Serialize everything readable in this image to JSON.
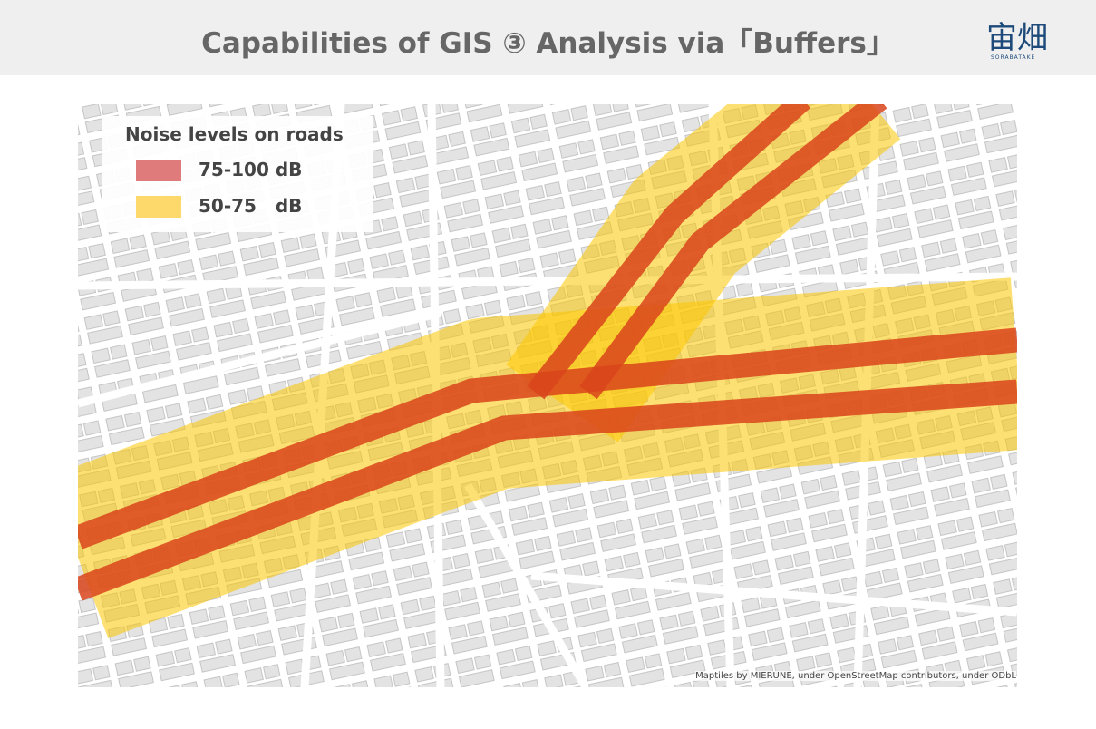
{
  "header": {
    "title": "Capabilities of GIS ③ Analysis via「Buffers」"
  },
  "logo": {
    "text": "宙畑",
    "subtitle": "SORABATAKE"
  },
  "legend": {
    "title": "Noise levels on roads",
    "items": [
      {
        "label": "75-100 dB"
      },
      {
        "label": "50-75   dB"
      }
    ]
  },
  "attribution": "Maptiles by MIERUNE, under OpenStreetMap contributors, under ODbL"
}
